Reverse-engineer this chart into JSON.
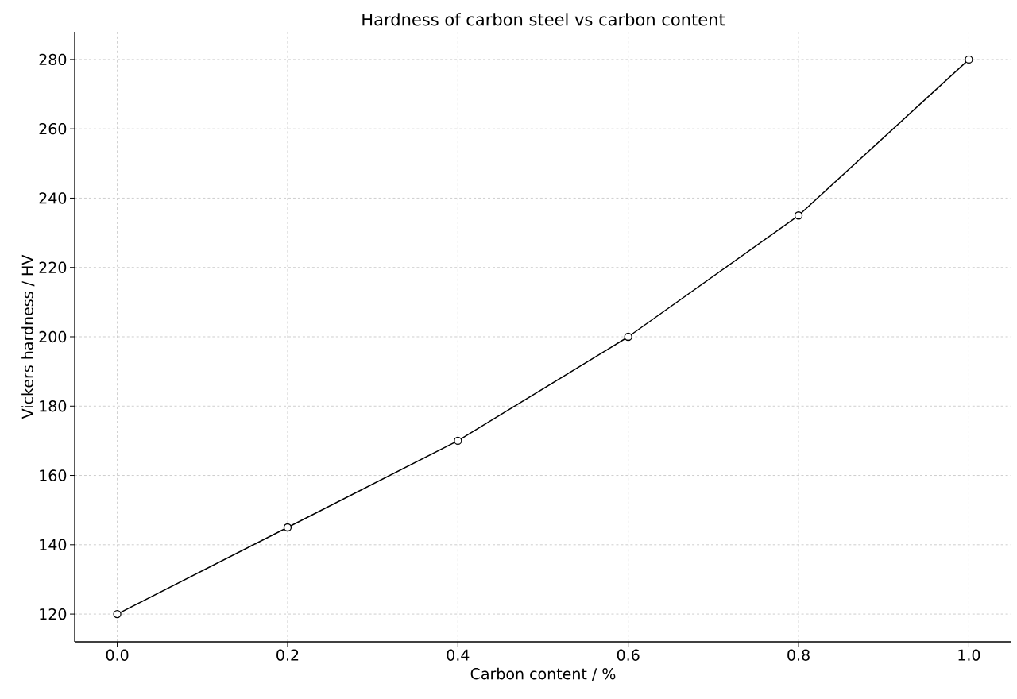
{
  "chart_data": {
    "type": "line",
    "title": "Hardness of carbon steel vs carbon content",
    "xlabel": "Carbon content / %",
    "ylabel": "Vickers hardness / HV",
    "x": [
      0,
      0.2,
      0.4,
      0.6,
      0.8,
      1.0
    ],
    "series": [
      {
        "color": "#000000",
        "values": [
          120,
          145,
          170,
          200,
          235,
          280
        ]
      }
    ],
    "xlim": [
      -0.05,
      1.05
    ],
    "ylim": [
      112,
      288
    ],
    "xticks": [
      {
        "value": 0,
        "label": "0.0"
      },
      0.2,
      0.4,
      0.6,
      0.8,
      {
        "value": 1,
        "label": "1.0"
      }
    ],
    "yticks": [
      120,
      140,
      160,
      180,
      200,
      220,
      240,
      260,
      280
    ],
    "grid": true,
    "marker": "circle",
    "line_style": "solid"
  }
}
